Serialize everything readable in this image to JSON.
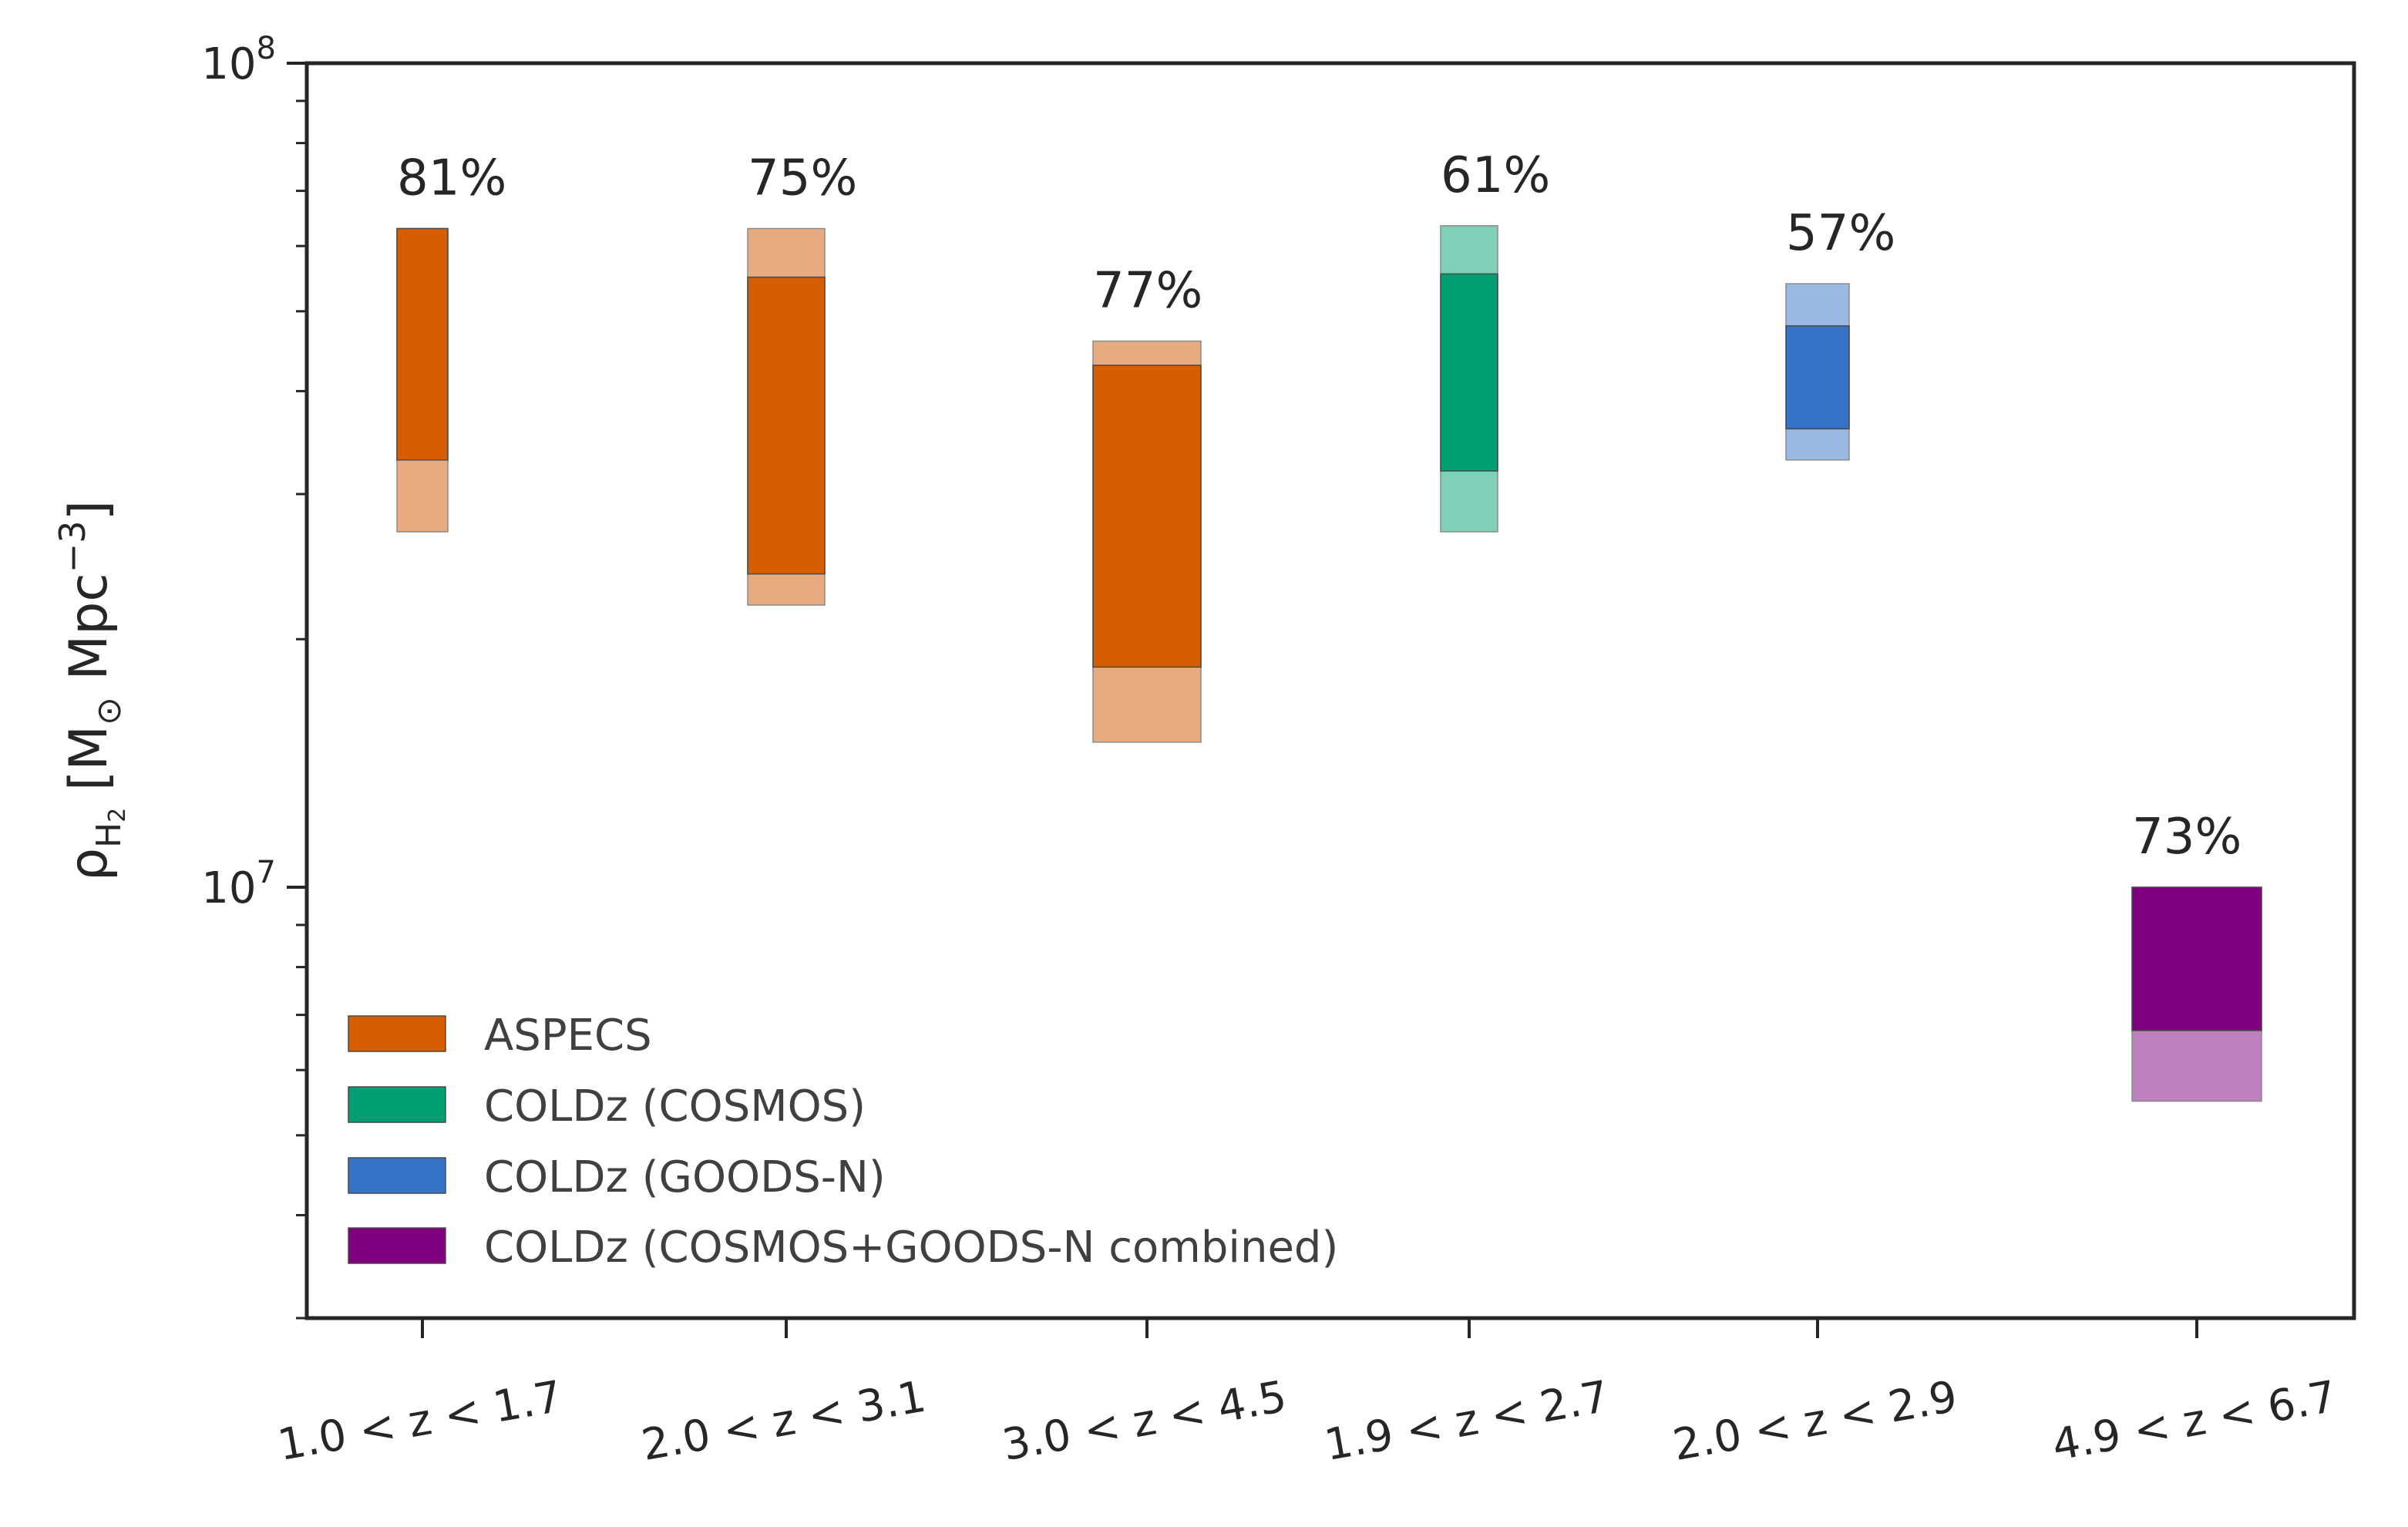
{
  "chart_data": {
    "type": "bar",
    "yscale": "log",
    "ylim": [
      3000000,
      100000000
    ],
    "ylabel": {
      "symbol": "ρ",
      "subscript": "H",
      "subsubscript": "2",
      "units_open": " [M",
      "sun_symbol": "⊙",
      "units_mid": " Mpc",
      "units_exp": "−3",
      "units_close": "]"
    },
    "yticks_major": [
      {
        "value": 10000000,
        "base": "10",
        "exp": "7"
      },
      {
        "value": 100000000,
        "base": "10",
        "exp": "8"
      }
    ],
    "yticks_minor": [
      3000000,
      4000000,
      5000000,
      6000000,
      7000000,
      8000000,
      9000000,
      20000000,
      30000000,
      40000000,
      50000000,
      60000000,
      70000000,
      80000000,
      90000000
    ],
    "categories": [
      "1.0 < z < 1.7",
      "2.0 < z < 3.1",
      "3.0 < z < 4.5",
      "1.9 < z < 2.7",
      "2.0 < z < 2.9",
      "4.9 < z < 6.7"
    ],
    "bars": [
      {
        "category": "1.0 < z < 1.7",
        "series": "ASPECS",
        "outer": [
          27000000,
          63000000
        ],
        "inner": [
          33000000,
          63000000
        ],
        "label": "81%"
      },
      {
        "category": "2.0 < z < 3.1",
        "series": "ASPECS",
        "outer": [
          22000000,
          63000000
        ],
        "inner": [
          24000000,
          55000000
        ],
        "label": "75%"
      },
      {
        "category": "3.0 < z < 4.5",
        "series": "ASPECS",
        "outer": [
          15000000,
          46000000
        ],
        "inner": [
          18500000,
          43000000
        ],
        "label": "77%"
      },
      {
        "category": "1.9 < z < 2.7",
        "series": "COLDz (COSMOS)",
        "outer": [
          27000000,
          63500000
        ],
        "inner": [
          32000000,
          55500000
        ],
        "label": "61%"
      },
      {
        "category": "2.0 < z < 2.9",
        "series": "COLDz (GOODS-N)",
        "outer": [
          33000000,
          54000000
        ],
        "inner": [
          36000000,
          48000000
        ],
        "label": "57%"
      },
      {
        "category": "4.9 < z < 6.7",
        "series": "COLDz (COSMOS+GOODS-N combined)",
        "outer": [
          5500000,
          10000000
        ],
        "inner": [
          6700000,
          10000000
        ],
        "label": "73%"
      }
    ],
    "series": [
      {
        "name": "ASPECS",
        "color": "#d55e00",
        "light": "#e8ab80"
      },
      {
        "name": "COLDz (COSMOS)",
        "color": "#009e73",
        "light": "#80cfb9"
      },
      {
        "name": "COLDz (GOODS-N)",
        "color": "#3473c8",
        "light": "#99b9e3"
      },
      {
        "name": "COLDz (COSMOS+GOODS-N combined)",
        "color": "#800080",
        "light": "#bf80bf"
      }
    ],
    "legend_position": "lower-left",
    "grid": false
  }
}
